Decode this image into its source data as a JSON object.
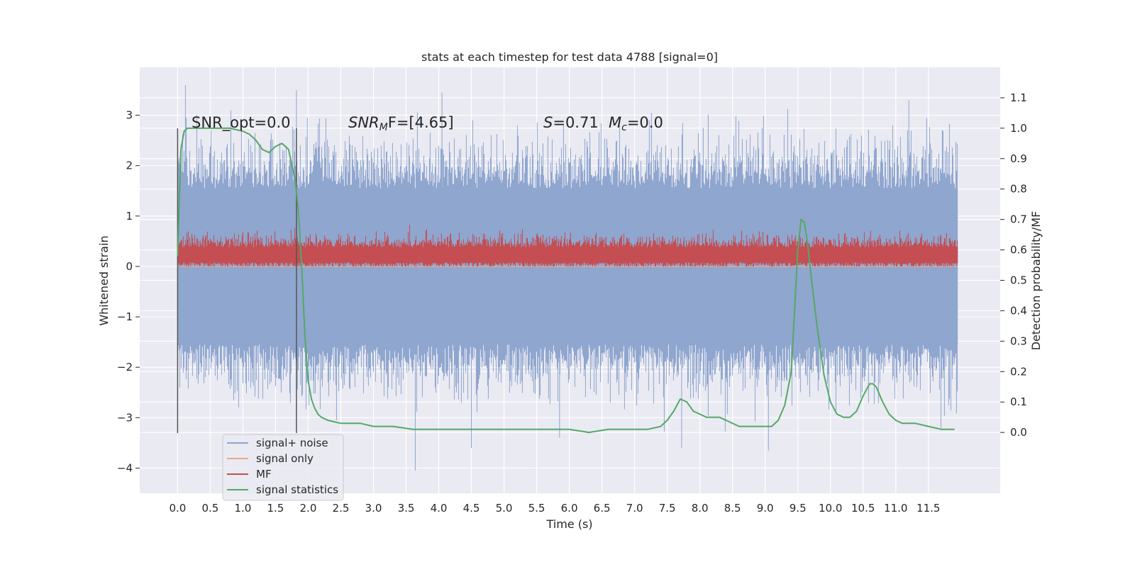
{
  "chart_data": {
    "type": "line",
    "title": "stats at each timestep for test data 4788 [signal=0]",
    "xlabel": "Time (s)",
    "ylabel": "Whitened strain",
    "y2label": "Detection probability/MF",
    "xlim": [
      -0.58,
      12.6
    ],
    "ylim": [
      -4.5,
      3.95
    ],
    "y2lim": [
      -0.2,
      1.2
    ],
    "xticks": [
      "0.0",
      "0.5",
      "1.0",
      "1.5",
      "2.0",
      "2.5",
      "3.0",
      "3.5",
      "4.0",
      "4.5",
      "5.0",
      "5.5",
      "6.0",
      "6.5",
      "7.0",
      "7.5",
      "8.0",
      "8.5",
      "9.0",
      "9.5",
      "10.0",
      "10.5",
      "11.0",
      "11.5"
    ],
    "yticks": [
      "3",
      "2",
      "1",
      "0",
      "−1",
      "−2",
      "−3",
      "−4"
    ],
    "y2ticks": [
      "1.1",
      "1.0",
      "0.9",
      "0.8",
      "0.7",
      "0.6",
      "0.5",
      "0.4",
      "0.3",
      "0.2",
      "0.1",
      "0.0"
    ],
    "grid": true,
    "legend_position": "lower-left",
    "colors": {
      "background": "#eaeaf2",
      "grid": "#ffffff",
      "noise": "#8fa6cf",
      "signal_only": "#e8a98f",
      "mf": "#c44e52",
      "signal_statistics": "#55a868",
      "vline": "#555555"
    },
    "annotations": {
      "snr_opt": "SNR_opt=0.0",
      "snr_mf_lead": "SNR",
      "snr_mf_sub": "M",
      "snr_mf_tail": "F=[4.65]",
      "s_lead": "S",
      "s_tail": "=0.71",
      "mc_lead": "M",
      "mc_sub": "c",
      "mc_tail": "=0.0"
    },
    "vlines": [
      0.0,
      1.82
    ],
    "series": [
      {
        "name": "signal+ noise",
        "y_axis": "left",
        "x_range": [
          0.0,
          11.95
        ],
        "envelope_upper": 1.55,
        "envelope_lower": -1.55,
        "spike_max": 3.6,
        "spike_min": -4.05
      },
      {
        "name": "signal only",
        "y_axis": "left",
        "x_range": [
          0.0,
          11.95
        ],
        "values_constant": 0.0
      },
      {
        "name": "MF",
        "y_axis": "left",
        "x_range": [
          0.0,
          11.95
        ],
        "band_upper": 0.6,
        "band_lower": 0.0,
        "spike_max": 1.0
      },
      {
        "name": "signal statistics",
        "y_axis": "right",
        "x": [
          0.0,
          0.05,
          0.1,
          0.15,
          0.2,
          0.4,
          0.6,
          0.8,
          1.0,
          1.1,
          1.2,
          1.3,
          1.4,
          1.5,
          1.6,
          1.7,
          1.75,
          1.8,
          1.85,
          1.9,
          1.95,
          2.0,
          2.05,
          2.1,
          2.15,
          2.2,
          2.3,
          2.5,
          2.8,
          3.0,
          3.3,
          3.6,
          3.9,
          4.2,
          4.5,
          4.8,
          5.1,
          5.4,
          5.7,
          6.0,
          6.3,
          6.6,
          6.9,
          7.2,
          7.4,
          7.5,
          7.6,
          7.7,
          7.8,
          7.9,
          8.0,
          8.1,
          8.2,
          8.3,
          8.4,
          8.6,
          8.8,
          9.0,
          9.1,
          9.2,
          9.3,
          9.4,
          9.45,
          9.5,
          9.55,
          9.6,
          9.65,
          9.7,
          9.8,
          9.9,
          10.0,
          10.1,
          10.2,
          10.3,
          10.4,
          10.5,
          10.6,
          10.65,
          10.7,
          10.8,
          10.9,
          11.0,
          11.1,
          11.3,
          11.5,
          11.7,
          11.9
        ],
        "values": [
          0.58,
          0.93,
          0.99,
          1.0,
          1.0,
          1.0,
          1.0,
          1.0,
          0.99,
          0.98,
          0.96,
          0.93,
          0.92,
          0.94,
          0.95,
          0.93,
          0.88,
          0.83,
          0.73,
          0.55,
          0.32,
          0.17,
          0.11,
          0.08,
          0.06,
          0.05,
          0.04,
          0.03,
          0.03,
          0.02,
          0.02,
          0.01,
          0.01,
          0.01,
          0.01,
          0.01,
          0.01,
          0.01,
          0.01,
          0.01,
          0.0,
          0.01,
          0.01,
          0.01,
          0.02,
          0.04,
          0.07,
          0.11,
          0.1,
          0.07,
          0.06,
          0.05,
          0.05,
          0.05,
          0.04,
          0.02,
          0.02,
          0.02,
          0.02,
          0.04,
          0.09,
          0.2,
          0.4,
          0.6,
          0.7,
          0.69,
          0.62,
          0.52,
          0.34,
          0.19,
          0.1,
          0.06,
          0.05,
          0.05,
          0.07,
          0.12,
          0.16,
          0.16,
          0.15,
          0.1,
          0.06,
          0.04,
          0.03,
          0.03,
          0.02,
          0.01,
          0.01
        ]
      }
    ]
  }
}
